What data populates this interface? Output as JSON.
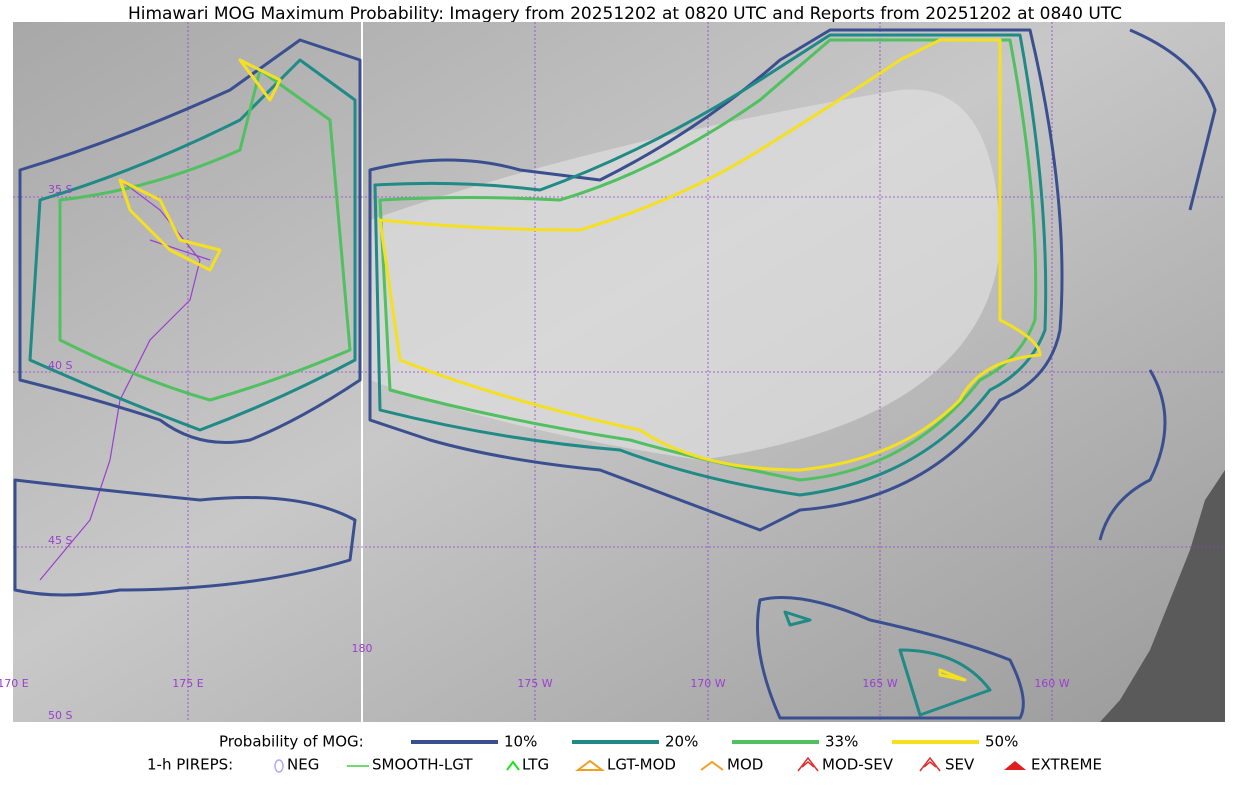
{
  "title": "Himawari MOG Maximum Probability: Imagery from 20251202 at 0820 UTC and Reports from 20251202 at 0840 UTC",
  "map": {
    "lat_labels": [
      "35 S",
      "40 S",
      "45 S",
      "50 S"
    ],
    "lon_labels": [
      "170 E",
      "175 E",
      "180",
      "175 W",
      "170 W",
      "165 W",
      "160 W"
    ]
  },
  "legend": {
    "title": "Probability of MOG:",
    "items": [
      {
        "label": "10%",
        "color": "#3a4f8f"
      },
      {
        "label": "20%",
        "color": "#1f8a86"
      },
      {
        "label": "33%",
        "color": "#50c060"
      },
      {
        "label": "50%",
        "color": "#f5e020"
      }
    ]
  },
  "pireps": {
    "title": "1-h PIREPS:",
    "items": [
      "NEG",
      "SMOOTH-LGT",
      "LTG",
      "LGT-MOD",
      "MOD",
      "MOD-SEV",
      "SEV",
      "EXTREME"
    ]
  }
}
